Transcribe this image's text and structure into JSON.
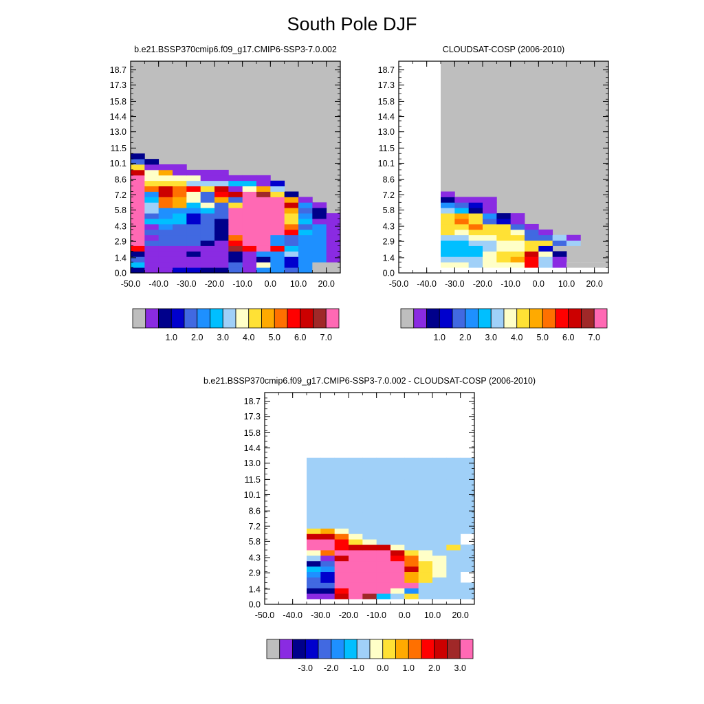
{
  "figure_title": "South Pole DJF",
  "colors": {
    "missing": "#BEBEBE",
    "palette": [
      "#BEBEBE",
      "#8A2BE2",
      "#00008B",
      "#0000CD",
      "#4169E1",
      "#1E90FF",
      "#00BFFF",
      "#A0D0F8",
      "#FFFFC8",
      "#FFE135",
      "#FFAA00",
      "#FF7000",
      "#FF0000",
      "#CC0000",
      "#A02828",
      "#FF69B4"
    ]
  },
  "chart_data": [
    {
      "type": "heatmap",
      "title": "b.e21.BSSP370cmip6.f09_g17.CMIP6-SSP3-7.0.002",
      "x_ticks": [
        "-50.0",
        "-40.0",
        "-30.0",
        "-20.0",
        "-10.0",
        "0.0",
        "10.0",
        "20.0"
      ],
      "y_ticks": [
        "0.0",
        "1.4",
        "2.9",
        "4.3",
        "5.8",
        "7.2",
        "8.6",
        "10.1",
        "11.5",
        "13.0",
        "14.4",
        "15.8",
        "17.3",
        "18.7"
      ],
      "xlim": [
        -50,
        25
      ],
      "ylim": [
        0,
        19.5
      ],
      "colorbar_labels": [
        "1.0",
        "2.0",
        "3.0",
        "4.0",
        "5.0",
        "6.0",
        "7.0"
      ],
      "x_edges": [
        -50,
        -45,
        -40,
        -35,
        -30,
        -25,
        -20,
        -15,
        -10,
        -5,
        0,
        5,
        10,
        15,
        20,
        25
      ],
      "y_edges": [
        0,
        0.5,
        1,
        1.5,
        2,
        2.5,
        3,
        3.5,
        4,
        4.5,
        5,
        5.5,
        6,
        6.5,
        7,
        7.5,
        8,
        8.5,
        9,
        9.5,
        10,
        10.5,
        11,
        11.5,
        12,
        12.5,
        13,
        13.5,
        14,
        14.5,
        15,
        15.5,
        16,
        16.5,
        17,
        17.5,
        18,
        18.5,
        19,
        19.5
      ],
      "rows": [
        "2113322415545000",
        "6111111418535000",
        "4111111212535510",
        "2111211215575510",
        "c111111ecfc65510",
        "f444421cff54551 ",
        "f144442bff54551 ",
        "f444442ffffc651 ",
        "f154442ffffb451 ",
        "f666342ffff9611 ",
        "f456344ffff9521 ",
        "f755564ffffa42  ",
        "f7ba6849fffd51  ",
        "f6ba84a4fffa1   ",
        "f5db84cdfe92    ",
        "fbdbc9d18a7     ",
        "f9997776613     ",
        "f888811111      ",
        "d8a1111         ",
        "9111            ",
        "42              ",
        "2               "
      ]
    },
    {
      "type": "heatmap",
      "title": "CLOUDSAT-COSP (2006-2010)",
      "x_ticks": [
        "-50.0",
        "-40.0",
        "-30.0",
        "-20.0",
        "-10.0",
        "0.0",
        "10.0",
        "20.0"
      ],
      "y_ticks": [
        "0.0",
        "1.4",
        "2.9",
        "4.3",
        "5.8",
        "7.2",
        "8.6",
        "10.1",
        "11.5",
        "13.0",
        "14.4",
        "15.8",
        "17.3",
        "18.7"
      ],
      "xlim": [
        -50,
        25
      ],
      "ylim": [
        0,
        19.5
      ],
      "colorbar_labels": [
        "1.0",
        "2.0",
        "3.0",
        "4.0",
        "5.0",
        "6.0",
        "7.0"
      ],
      "x_edges": [
        -50,
        -45,
        -40,
        -35,
        -30,
        -25,
        -20,
        -15,
        -10,
        -5,
        0,
        5,
        10,
        15,
        20,
        25
      ],
      "y_edges": [
        0,
        0.5,
        1,
        1.5,
        2,
        2.5,
        3,
        3.5,
        4,
        4.5,
        5,
        5.5,
        6,
        6.5,
        7,
        7.5,
        8,
        8.5,
        9,
        9.5,
        10,
        10.5,
        11,
        11.5,
        12,
        12.5,
        13,
        13.5,
        14,
        14.5,
        15,
        15.5,
        16,
        16.5,
        17,
        17.5,
        18,
        18.5,
        19,
        19.5
      ],
      "rows": [
        "       ",
        "   887888c7100000",
        "   77789ac71      ",
        "   666899d82      ",
        "   66678893       ",
        "   6677889947     ",
        "   7788994471     ",
        "   98999841       ",
        "   99b9941        ",
        "   9b9431         ",
        "   9a9521         ",
        "   7621           ",
        "   5431           ",
        "   2111           ",
        "   1              "
      ]
    },
    {
      "type": "heatmap",
      "title": "b.e21.BSSP370cmip6.f09_g17.CMIP6-SSP3-7.0.002 - CLOUDSAT-COSP (2006-2010)",
      "x_ticks": [
        "-50.0",
        "-40.0",
        "-30.0",
        "-20.0",
        "-10.0",
        "0.0",
        "10.0",
        "20.0"
      ],
      "y_ticks": [
        "0.0",
        "1.4",
        "2.9",
        "4.3",
        "5.8",
        "7.2",
        "8.6",
        "10.1",
        "11.5",
        "13.0",
        "14.4",
        "15.8",
        "17.3",
        "18.7"
      ],
      "xlim": [
        -50,
        25
      ],
      "ylim": [
        0,
        19.5
      ],
      "colorbar_labels": [
        "-3.0",
        "-2.0",
        "-1.0",
        "0.0",
        "1.0",
        "2.0",
        "3.0"
      ],
      "x_edges": [
        -50,
        -45,
        -40,
        -35,
        -30,
        -25,
        -20,
        -15,
        -10,
        -5,
        0,
        5,
        10,
        15,
        20,
        25
      ],
      "y_edges": [
        0,
        0.5,
        1,
        1.5,
        2,
        2.5,
        3,
        3.5,
        4,
        4.5,
        5,
        5.5,
        6,
        6.5,
        7,
        7.5,
        8,
        8.5,
        9,
        9.5,
        10,
        10.5,
        11,
        11.5,
        12,
        12.5,
        13,
        13.5,
        14,
        14.5,
        15,
        15.5,
        16,
        16.5,
        17,
        17.5,
        18,
        18.5,
        19,
        19.5
      ],
      "rows": [
        "       ",
        "   11dfe679777777",
        "   22cfff857777  ",
        "   44ffffff7777  ",
        "   43fffffa977   ",
        "   53fffffa987   ",
        "   65fffffd9877  ",
        "   24fffffb98777 ",
        "   71dfffcb8877  ",
        "   8bffffd98777  ",
        "   ffcddd8777977 ",
        "   ffc98777777   ",
        "   ddb87777777   ",
        "   9a8777777777  ",
        "   777777777777  ",
        "   777777777777  ",
        "   777777777777  ",
        "   777777777777  ",
        "   777777777777  ",
        "   777777777777  ",
        "   777777777777  ",
        "   777777777777  ",
        "   777777777777  ",
        "   777777777777  ",
        "   777777777777  ",
        "   777777777777  ",
        "   7777777777777 "
      ]
    }
  ]
}
